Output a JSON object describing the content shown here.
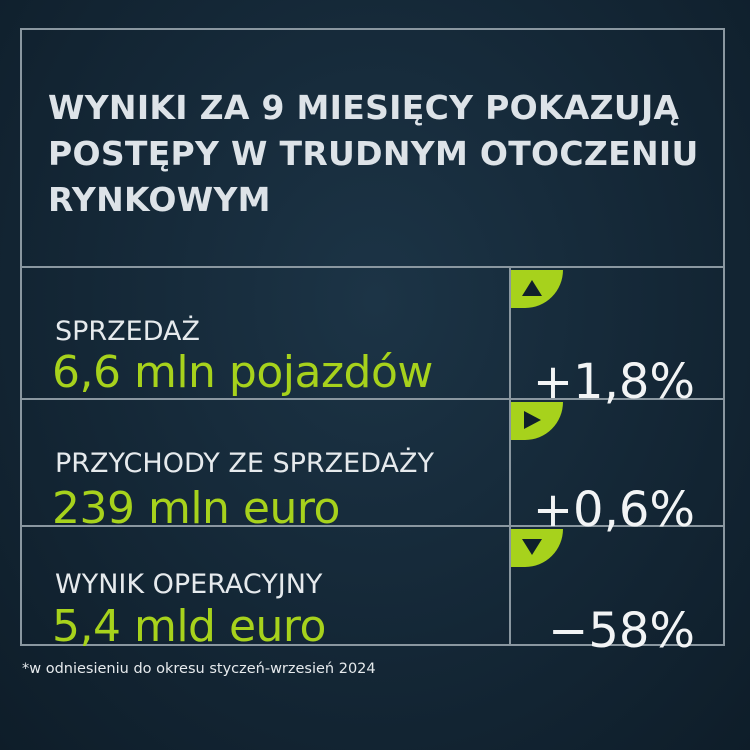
{
  "title": "WYNIKI ZA 9 MIESIĘCY POKAZUJĄ POSTĘPY W TRUDNYM OTOCZENIU RYNKOWYM",
  "colors": {
    "background": "#142736",
    "accent": "#a7d21c",
    "border": "#8a97a0",
    "text": "#e6eaed"
  },
  "rows": [
    {
      "label": "SPRZEDAŻ",
      "value": "6,6 mln pojazdów",
      "change": "+1,8%",
      "icon": "triangle-up-icon"
    },
    {
      "label": "PRZYCHODY ZE SPRZEDAŻY",
      "value": "239 mln euro",
      "change": "+0,6%",
      "icon": "triangle-right-icon"
    },
    {
      "label": "WYNIK OPERACYJNY",
      "value": "5,4 mld euro",
      "change": "−58%",
      "icon": "triangle-down-icon"
    }
  ],
  "footnote": "*w odniesieniu do okresu styczeń-wrzesień 2024"
}
